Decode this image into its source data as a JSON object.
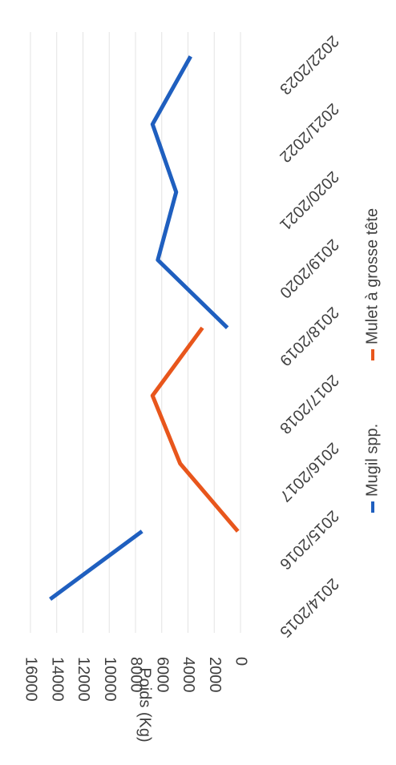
{
  "chart_data": {
    "type": "line",
    "y_label": "Poids (Kg)",
    "categories": [
      "2014/2015",
      "2015/2016",
      "2016/2017",
      "2017/2018",
      "2018/2019",
      "2019/2020",
      "2020/2021",
      "2021/2022",
      "2022/2023"
    ],
    "series": [
      {
        "name": "Mugil spp.",
        "color": "#1f5fbf",
        "values": [
          14500,
          7500,
          null,
          null,
          1000,
          6300,
          4900,
          6700,
          3800
        ]
      },
      {
        "name": "Mulet à grosse tête",
        "color": "#e8561c",
        "values": [
          null,
          200,
          4600,
          6700,
          2900,
          null,
          null,
          null,
          null
        ]
      }
    ],
    "ylim": [
      0,
      16000
    ],
    "yticks": [
      0,
      2000,
      4000,
      6000,
      8000,
      10000,
      12000,
      14000,
      16000
    ],
    "grid": true
  }
}
